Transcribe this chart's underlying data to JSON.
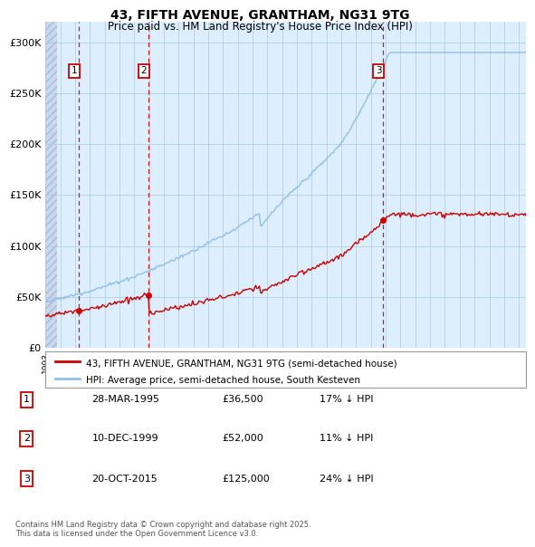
{
  "title": "43, FIFTH AVENUE, GRANTHAM, NG31 9TG",
  "subtitle": "Price paid vs. HM Land Registry's House Price Index (HPI)",
  "ylim": [
    0,
    320000
  ],
  "yticks": [
    0,
    50000,
    100000,
    150000,
    200000,
    250000,
    300000
  ],
  "ytick_labels": [
    "£0",
    "£50K",
    "£100K",
    "£150K",
    "£200K",
    "£250K",
    "£300K"
  ],
  "sale_years": [
    1995.24,
    1999.95,
    2015.8
  ],
  "sale_prices": [
    36500,
    52000,
    125000
  ],
  "sale_labels": [
    "1",
    "2",
    "3"
  ],
  "legend_line1": "43, FIFTH AVENUE, GRANTHAM, NG31 9TG (semi-detached house)",
  "legend_line2": "HPI: Average price, semi-detached house, South Kesteven",
  "table_rows": [
    {
      "num": "1",
      "date": "28-MAR-1995",
      "price": "£36,500",
      "hpi": "17% ↓ HPI"
    },
    {
      "num": "2",
      "date": "10-DEC-1999",
      "price": "£52,000",
      "hpi": "11% ↓ HPI"
    },
    {
      "num": "3",
      "date": "20-OCT-2015",
      "price": "£125,000",
      "hpi": "24% ↓ HPI"
    }
  ],
  "footnote": "Contains HM Land Registry data © Crown copyright and database right 2025.\nThis data is licensed under the Open Government Licence v3.0.",
  "hpi_color": "#90c0e8",
  "sale_color": "#cc0000",
  "bg_color": "#ddeeff",
  "hatch_color": "#c8d8ee",
  "grid_color": "#b0c8e0"
}
